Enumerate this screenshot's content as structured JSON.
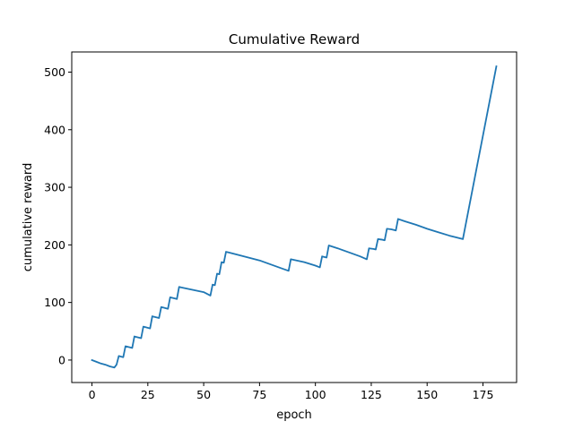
{
  "chart_data": {
    "type": "line",
    "title": "Cumulative Reward",
    "xlabel": "epoch",
    "ylabel": "cumulative reward",
    "xlim": [
      -9.05,
      190.05
    ],
    "ylim": [
      -39,
      535
    ],
    "xticks": [
      0,
      25,
      50,
      75,
      100,
      125,
      150,
      175
    ],
    "yticks": [
      0,
      100,
      200,
      300,
      400,
      500
    ],
    "grid": false,
    "series": [
      {
        "color": "#1f77b4",
        "x": [
          0,
          2,
          4,
          6,
          8,
          10,
          11,
          12,
          14,
          15,
          16,
          18,
          19,
          20,
          22,
          23,
          24,
          26,
          27,
          28,
          30,
          31,
          32,
          34,
          35,
          36,
          38,
          39,
          40,
          45,
          50,
          53,
          54,
          55,
          56,
          57,
          58,
          59,
          60,
          65,
          70,
          75,
          80,
          85,
          88,
          89,
          95,
          100,
          102,
          103,
          104,
          105,
          106,
          110,
          115,
          120,
          123,
          124,
          126,
          127,
          128,
          130,
          131,
          132,
          134,
          135,
          136,
          137,
          140,
          145,
          150,
          155,
          160,
          166,
          181
        ],
        "y": [
          0,
          -3,
          -6,
          -8,
          -11,
          -13,
          -8,
          7,
          5,
          24,
          23,
          21,
          41,
          40,
          38,
          58,
          57,
          55,
          76,
          75,
          73,
          92,
          91,
          89,
          109,
          108,
          106,
          127,
          126,
          122,
          118,
          112,
          131,
          130,
          150,
          149,
          170,
          169,
          188,
          183,
          178,
          173,
          166,
          159,
          155,
          175,
          170,
          164,
          161,
          180,
          179,
          178,
          199,
          194,
          187,
          180,
          175,
          194,
          193,
          192,
          210,
          209,
          208,
          228,
          227,
          226,
          225,
          245,
          241,
          235,
          228,
          222,
          216,
          210,
          510
        ]
      }
    ]
  }
}
